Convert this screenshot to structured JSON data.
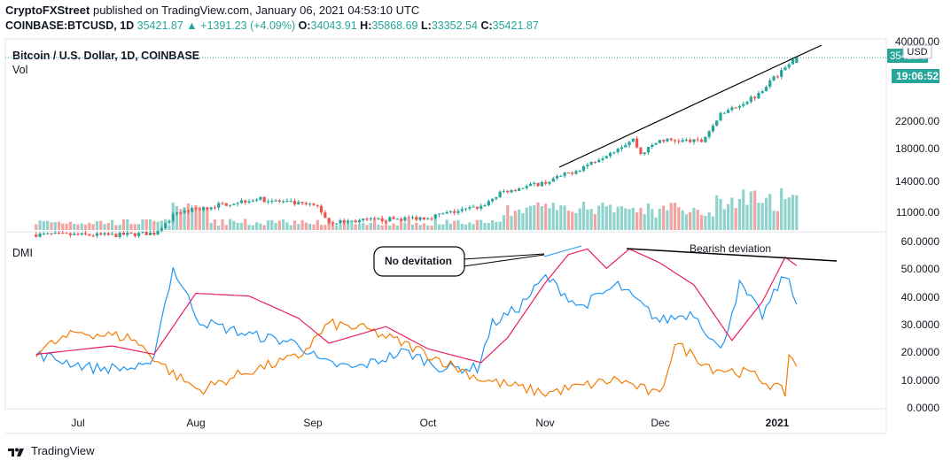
{
  "header": {
    "publisher": "CryptoFXStreet",
    "published_text": "published on TradingView.com, January 06, 2021 04:53:10 UTC",
    "symbol": "COINBASE:BTCUSD,",
    "timeframe": "1D",
    "last": "35421.87",
    "change": "+1391.23 (+4.09%)",
    "o_label": "O:",
    "o_value": "34043.91",
    "h_label": "H:",
    "h_value": "35868.69",
    "l_label": "L:",
    "l_value": "33352.54",
    "c_label": "C:",
    "c_value": "35421.87"
  },
  "price_pane": {
    "title": "Bitcoin / U.S. Dollar, 1D, COINBASE",
    "volume_label": "Vol",
    "currency_badge": "USD",
    "last_price_badge": "35421.87",
    "countdown_badge": "19:06:52",
    "y_ticks": [
      "40000.00",
      "22000.00",
      "18000.00",
      "14000.00",
      "11000.00"
    ]
  },
  "dmi_pane": {
    "label": "DMI",
    "y_ticks": [
      "60.0000",
      "50.0000",
      "40.0000",
      "30.0000",
      "20.0000",
      "10.0000",
      "0.0000"
    ],
    "annotation_box": "No devitation",
    "annotation_text": "Bearish deviation"
  },
  "x_axis": {
    "labels": [
      "Jul",
      "Aug",
      "Sep",
      "Oct",
      "Nov",
      "Dec",
      "2021"
    ]
  },
  "footer": {
    "brand": "TradingView"
  },
  "colors": {
    "up": "#26a69a",
    "down": "#ef5350",
    "di_plus": "#2196f3",
    "di_minus": "#f57c00",
    "adx": "#e91e63"
  },
  "chart_data": [
    {
      "type": "candlestick",
      "title": "Bitcoin / U.S. Dollar, 1D, COINBASE",
      "scale": "log",
      "ylim": [
        9000,
        40000
      ],
      "x_range": [
        "2020-06-20",
        "2021-01-06"
      ],
      "close_anchors": [
        {
          "date": "2020-06-20",
          "close": 9300
        },
        {
          "date": "2020-07-10",
          "close": 9250
        },
        {
          "date": "2020-07-21",
          "close": 9400
        },
        {
          "date": "2020-07-27",
          "close": 11000
        },
        {
          "date": "2020-08-10",
          "close": 11800
        },
        {
          "date": "2020-08-17",
          "close": 12200
        },
        {
          "date": "2020-09-02",
          "close": 11500
        },
        {
          "date": "2020-09-05",
          "close": 10200
        },
        {
          "date": "2020-10-01",
          "close": 10600
        },
        {
          "date": "2020-10-15",
          "close": 11500
        },
        {
          "date": "2020-10-21",
          "close": 12900
        },
        {
          "date": "2020-11-01",
          "close": 13800
        },
        {
          "date": "2020-11-10",
          "close": 15300
        },
        {
          "date": "2020-11-24",
          "close": 19100
        },
        {
          "date": "2020-11-26",
          "close": 17100
        },
        {
          "date": "2020-12-01",
          "close": 19000
        },
        {
          "date": "2020-12-12",
          "close": 18800
        },
        {
          "date": "2020-12-17",
          "close": 23000
        },
        {
          "date": "2020-12-26",
          "close": 26500
        },
        {
          "date": "2021-01-02",
          "close": 32000
        },
        {
          "date": "2021-01-06",
          "close": 35421.87
        }
      ],
      "volume": "relative bars under price"
    },
    {
      "type": "line",
      "title": "DMI",
      "ylim": [
        0,
        60
      ],
      "series": [
        {
          "name": "",
          "color": "#2196f3",
          "points": [
            [
              "2020-06-20",
              19
            ],
            [
              "2020-07-05",
              14
            ],
            [
              "2020-07-20",
              14
            ],
            [
              "2020-07-26",
              50
            ],
            [
              "2020-08-02",
              31
            ],
            [
              "2020-08-15",
              26
            ],
            [
              "2020-08-28",
              23
            ],
            [
              "2020-09-03",
              16
            ],
            [
              "2020-09-12",
              14
            ],
            [
              "2020-09-25",
              20
            ],
            [
              "2020-10-05",
              14
            ],
            [
              "2020-10-14",
              14
            ],
            [
              "2020-10-18",
              30
            ],
            [
              "2020-10-25",
              36
            ],
            [
              "2020-11-01",
              47
            ],
            [
              "2020-11-10",
              36
            ],
            [
              "2020-11-20",
              44
            ],
            [
              "2020-12-01",
              31
            ],
            [
              "2020-12-10",
              34
            ],
            [
              "2020-12-17",
              20
            ],
            [
              "2020-12-22",
              44
            ],
            [
              "2020-12-28",
              33
            ],
            [
              "2021-01-03",
              48
            ],
            [
              "2021-01-06",
              37
            ]
          ]
        },
        {
          "name": "",
          "color": "#f57c00",
          "points": [
            [
              "2020-06-20",
              20
            ],
            [
              "2020-07-01",
              27
            ],
            [
              "2020-07-15",
              25
            ],
            [
              "2020-07-26",
              12
            ],
            [
              "2020-08-02",
              6
            ],
            [
              "2020-08-15",
              13
            ],
            [
              "2020-08-28",
              18
            ],
            [
              "2020-09-05",
              30
            ],
            [
              "2020-09-15",
              28
            ],
            [
              "2020-09-28",
              21
            ],
            [
              "2020-10-15",
              10
            ],
            [
              "2020-11-01",
              5
            ],
            [
              "2020-11-20",
              10
            ],
            [
              "2020-12-01",
              4
            ],
            [
              "2020-12-05",
              23
            ],
            [
              "2020-12-15",
              14
            ],
            [
              "2020-12-25",
              12
            ],
            [
              "2021-01-03",
              5
            ],
            [
              "2021-01-04",
              19
            ],
            [
              "2021-01-06",
              15
            ]
          ]
        },
        {
          "name": "",
          "color": "#e91e63",
          "points": [
            [
              "2020-06-20",
              19
            ],
            [
              "2020-07-10",
              22
            ],
            [
              "2020-07-21",
              19
            ],
            [
              "2020-08-01",
              41
            ],
            [
              "2020-08-15",
              40
            ],
            [
              "2020-08-28",
              32
            ],
            [
              "2020-09-05",
              23
            ],
            [
              "2020-09-20",
              29
            ],
            [
              "2020-10-01",
              21
            ],
            [
              "2020-10-15",
              16
            ],
            [
              "2020-10-22",
              25
            ],
            [
              "2020-11-01",
              45
            ],
            [
              "2020-11-07",
              55
            ],
            [
              "2020-11-12",
              57
            ],
            [
              "2020-11-17",
              50
            ],
            [
              "2020-11-23",
              57
            ],
            [
              "2020-12-01",
              52
            ],
            [
              "2020-12-10",
              44
            ],
            [
              "2020-12-20",
              24
            ],
            [
              "2020-12-28",
              38
            ],
            [
              "2021-01-03",
              54
            ],
            [
              "2021-01-06",
              51
            ]
          ]
        }
      ],
      "annotations": [
        "No devitation",
        "Bearish deviation"
      ]
    }
  ]
}
